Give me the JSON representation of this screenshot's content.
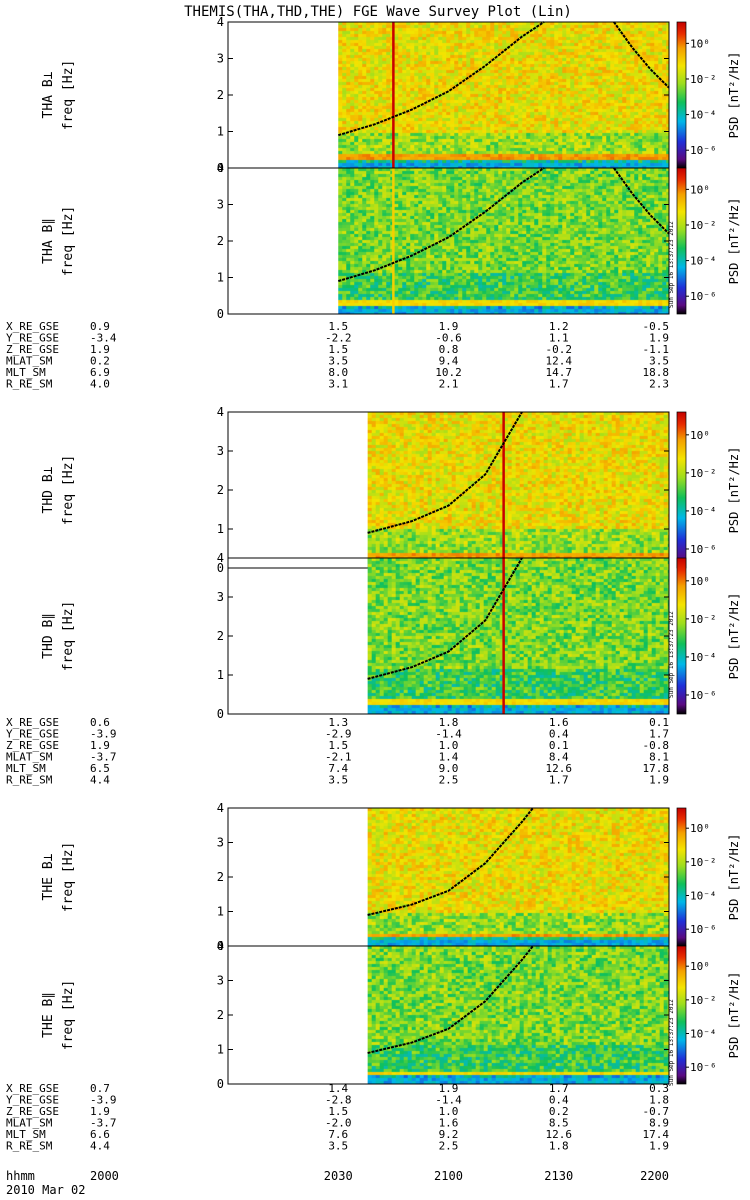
{
  "title": "THEMIS(THA,THD,THE) FGE Wave Survey Plot (Lin)",
  "timestamp": "Sun Sep 16 13:37:23 2012",
  "colorbar": {
    "label": "PSD [nT²/Hz]",
    "ticks": [
      "10⁰",
      "10⁻²",
      "10⁻⁴",
      "10⁻⁶"
    ],
    "exponents": [
      0,
      -2,
      -4,
      -6
    ]
  },
  "freq_label": "freq [Hz]",
  "freq_ticks": [
    "0",
    "1",
    "2",
    "3",
    "4"
  ],
  "ephem_labels": [
    "X_RE_GSE",
    "Y_RE_GSE",
    "Z_RE_GSE",
    "MLAT_SM",
    "MLT_SM",
    "R_RE_SM"
  ],
  "time_label": "hhmm",
  "date_label": "2010 Mar 02",
  "time_ticks": [
    "2000",
    "2030",
    "2100",
    "2130",
    "2200"
  ],
  "chart_data": [
    {
      "type": "heatmap",
      "probe": "THA",
      "panels": [
        {
          "label": "THA B⊥",
          "ylabel": "freq [Hz]",
          "ylim": [
            0,
            4
          ],
          "data_start_hhmm": "2030"
        },
        {
          "label": "THA B∥",
          "ylabel": "freq [Hz]",
          "ylim": [
            0,
            4
          ],
          "data_start_hhmm": "2030"
        }
      ],
      "spike_time_hhmm": "2045",
      "gyro_curves": [
        {
          "x_hhmm": [
            2030,
            2040,
            2050,
            2100,
            2110,
            2120,
            2126
          ],
          "y_hz": [
            0.9,
            1.2,
            1.6,
            2.1,
            2.8,
            3.6,
            4.0
          ]
        },
        {
          "x_hhmm": [
            2145,
            2150,
            2155,
            2200
          ],
          "y_hz": [
            4.0,
            3.3,
            2.7,
            2.2
          ]
        }
      ],
      "ephemeris": {
        "X_RE_GSE": [
          "0.9",
          "1.5",
          "1.9",
          "1.2",
          "-0.5"
        ],
        "Y_RE_GSE": [
          "-3.4",
          "-2.2",
          "-0.6",
          "1.1",
          "1.9"
        ],
        "Z_RE_GSE": [
          "1.9",
          "1.5",
          "0.8",
          "-0.2",
          "-1.1"
        ],
        "MLAT_SM": [
          "0.2",
          "3.5",
          "9.4",
          "12.4",
          "3.5"
        ],
        "MLT_SM": [
          "6.9",
          "8.0",
          "10.2",
          "14.7",
          "18.8"
        ],
        "R_RE_SM": [
          "4.0",
          "3.1",
          "2.1",
          "1.7",
          "2.3"
        ]
      }
    },
    {
      "type": "heatmap",
      "probe": "THD",
      "panels": [
        {
          "label": "THD B⊥",
          "ylabel": "freq [Hz]",
          "ylim": [
            0,
            4
          ],
          "data_start_hhmm": "2038"
        },
        {
          "label": "THD B∥",
          "ylabel": "freq [Hz]",
          "ylim": [
            0,
            4
          ],
          "data_start_hhmm": "2038"
        }
      ],
      "spike_time_hhmm": "2115",
      "gyro_curves": [
        {
          "x_hhmm": [
            2038,
            2050,
            2100,
            2110,
            2115,
            2120
          ],
          "y_hz": [
            0.9,
            1.2,
            1.6,
            2.4,
            3.2,
            4.0
          ]
        }
      ],
      "ephemeris": {
        "X_RE_GSE": [
          "0.6",
          "1.3",
          "1.8",
          "1.6",
          "0.1"
        ],
        "Y_RE_GSE": [
          "-3.9",
          "-2.9",
          "-1.4",
          "0.4",
          "1.7"
        ],
        "Z_RE_GSE": [
          "1.9",
          "1.5",
          "1.0",
          "0.1",
          "-0.8"
        ],
        "MLAT_SM": [
          "-3.7",
          "-2.1",
          "1.4",
          "8.4",
          "8.1"
        ],
        "MLT_SM": [
          "6.5",
          "7.4",
          "9.0",
          "12.6",
          "17.8"
        ],
        "R_RE_SM": [
          "4.4",
          "3.5",
          "2.5",
          "1.7",
          "1.9"
        ]
      }
    },
    {
      "type": "heatmap",
      "probe": "THE",
      "panels": [
        {
          "label": "THE B⊥",
          "ylabel": "freq [Hz]",
          "ylim": [
            0,
            4
          ],
          "data_start_hhmm": "2038"
        },
        {
          "label": "THE B∥",
          "ylabel": "freq [Hz]",
          "ylim": [
            0,
            4
          ],
          "data_start_hhmm": "2038"
        }
      ],
      "spike_time_hhmm": "",
      "gyro_curves": [
        {
          "x_hhmm": [
            2038,
            2050,
            2100,
            2110,
            2120,
            2123
          ],
          "y_hz": [
            0.9,
            1.2,
            1.6,
            2.4,
            3.6,
            4.0
          ]
        }
      ],
      "ephemeris": {
        "X_RE_GSE": [
          "0.7",
          "1.4",
          "1.9",
          "1.7",
          "0.3"
        ],
        "Y_RE_GSE": [
          "-3.9",
          "-2.8",
          "-1.4",
          "0.4",
          "1.8"
        ],
        "Z_RE_GSE": [
          "1.9",
          "1.5",
          "1.0",
          "0.2",
          "-0.7"
        ],
        "MLAT_SM": [
          "-3.7",
          "-2.0",
          "1.6",
          "8.5",
          "8.9"
        ],
        "MLT_SM": [
          "6.6",
          "7.6",
          "9.2",
          "12.6",
          "17.4"
        ],
        "R_RE_SM": [
          "4.4",
          "3.5",
          "2.5",
          "1.8",
          "1.9"
        ]
      }
    }
  ]
}
